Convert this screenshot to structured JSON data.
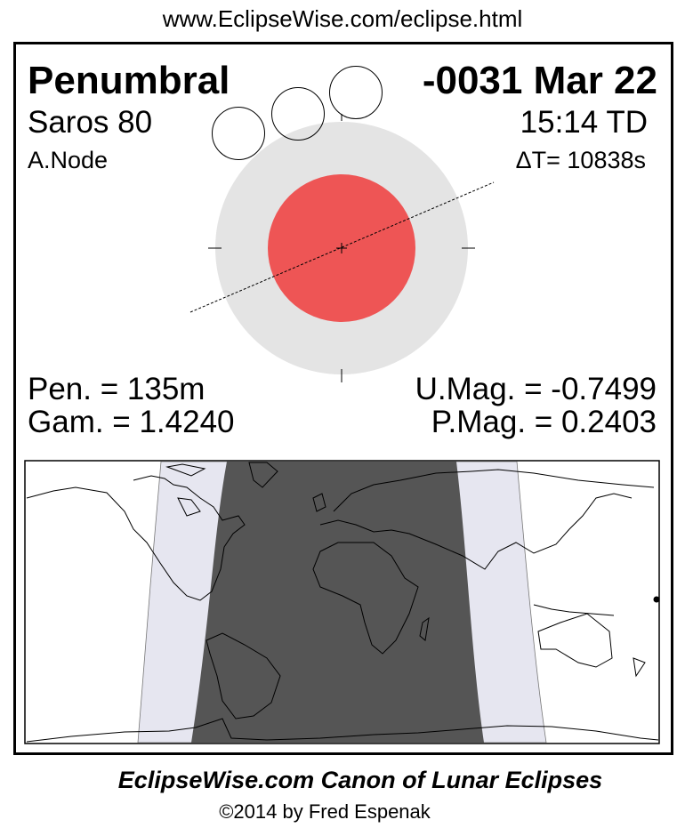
{
  "header": {
    "url": "www.EclipseWise.com/eclipse.html"
  },
  "eclipse": {
    "type": "Penumbral",
    "date": "-0031 Mar 22",
    "saros": "Saros  80",
    "time": "15:14 TD",
    "node": "A.Node",
    "delta_t": "ΔT=  10838s",
    "pen_duration": "Pen. = 135m",
    "gamma": "Gam. = 1.4240",
    "umbral_mag": "U.Mag. = -0.7499",
    "penumbral_mag": "P.Mag. = 0.2403"
  },
  "colors": {
    "umbra": "#ee5555",
    "penumbra": "#e4e4e4",
    "night": "#555555",
    "penumbral_zone": "#e6e6f0"
  },
  "footer": {
    "title": "EclipseWise.com Canon of Lunar Eclipses",
    "copyright": "©2014 by Fred Espenak"
  }
}
